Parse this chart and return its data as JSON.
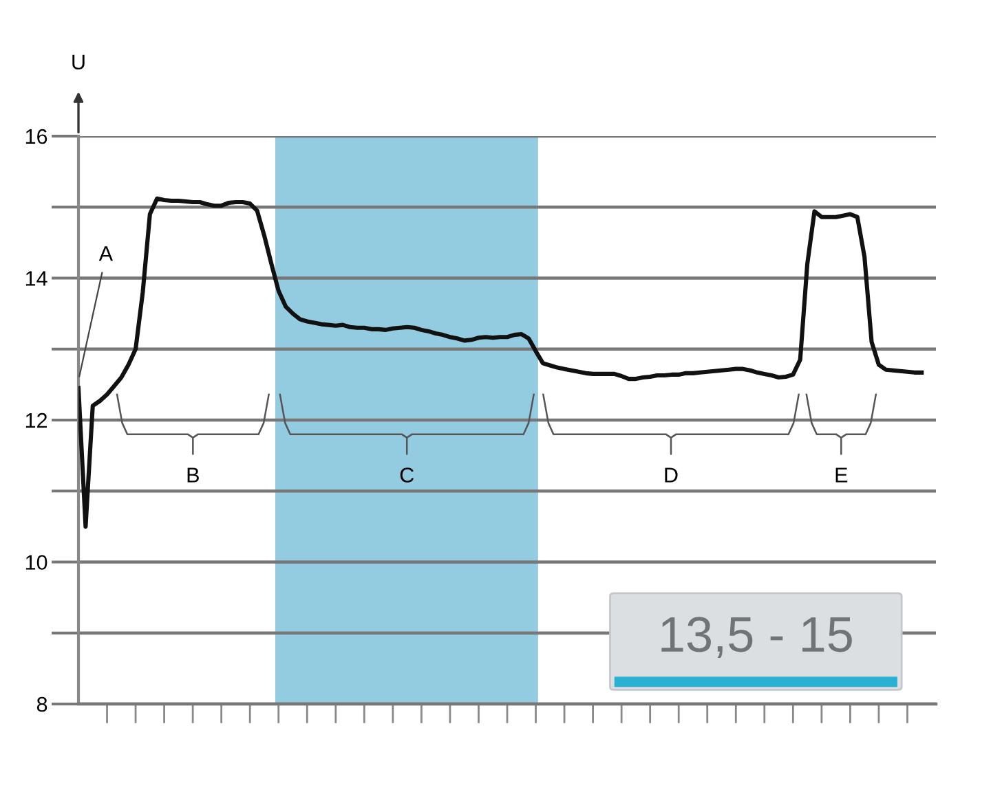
{
  "chart_data": {
    "type": "line",
    "ylabel": "U",
    "categories": [
      null,
      null,
      null,
      null,
      null,
      null,
      null,
      null,
      null,
      null,
      null,
      null,
      null,
      null,
      null,
      null,
      null,
      null,
      null,
      null,
      null,
      null,
      null,
      null,
      null,
      null,
      null,
      null,
      null,
      null,
      null,
      null,
      null,
      null,
      null,
      null,
      null,
      null,
      null,
      null,
      null,
      null,
      null,
      null,
      null,
      null,
      null,
      null,
      null,
      null,
      null,
      null,
      null,
      null,
      null,
      null,
      null,
      null,
      null,
      null,
      null,
      null,
      null,
      null,
      null,
      null,
      null,
      null,
      null,
      null,
      null,
      null,
      null,
      null,
      null,
      null,
      null,
      null,
      null,
      null,
      null,
      null,
      null,
      null,
      null,
      null,
      null,
      null,
      null,
      null,
      null,
      null,
      null,
      null,
      null,
      null,
      null,
      null,
      null,
      null,
      null,
      null,
      null,
      null,
      null,
      null,
      null,
      null,
      null,
      null,
      null,
      null,
      null,
      null,
      null,
      null,
      null,
      null,
      null
    ],
    "series": [
      {
        "color": "#111111",
        "values": [
          12.45,
          10.5,
          12.2,
          12.27,
          12.36,
          12.48,
          12.6,
          12.78,
          13.0,
          13.8,
          14.9,
          15.12,
          15.1,
          15.09,
          15.09,
          15.08,
          15.07,
          15.07,
          15.04,
          15.02,
          15.02,
          15.06,
          15.07,
          15.07,
          15.05,
          14.95,
          14.6,
          14.2,
          13.82,
          13.6,
          13.5,
          13.42,
          13.39,
          13.37,
          13.35,
          13.34,
          13.33,
          13.34,
          13.31,
          13.3,
          13.3,
          13.28,
          13.28,
          13.27,
          13.29,
          13.3,
          13.31,
          13.3,
          13.27,
          13.25,
          13.22,
          13.2,
          13.17,
          13.15,
          13.12,
          13.13,
          13.16,
          13.17,
          13.16,
          13.17,
          13.17,
          13.2,
          13.21,
          13.15,
          12.97,
          12.8,
          12.77,
          12.74,
          12.72,
          12.7,
          12.68,
          12.66,
          12.65,
          12.65,
          12.65,
          12.65,
          12.62,
          12.58,
          12.58,
          12.6,
          12.61,
          12.63,
          12.63,
          12.64,
          12.64,
          12.66,
          12.66,
          12.67,
          12.68,
          12.69,
          12.7,
          12.71,
          12.72,
          12.72,
          12.7,
          12.67,
          12.65,
          12.63,
          12.6,
          12.61,
          12.64,
          12.85,
          14.2,
          14.94,
          14.86,
          14.86,
          14.86,
          14.88,
          14.9,
          14.86,
          14.3,
          13.1,
          12.78,
          12.71,
          12.7,
          12.69,
          12.68,
          12.67,
          12.67
        ]
      }
    ],
    "ylim": [
      8,
      16
    ],
    "yticks": [
      8,
      {
        "value": 9,
        "label": null
      },
      10,
      {
        "value": 11,
        "label": null
      },
      12,
      {
        "value": 13,
        "label": null
      },
      14,
      {
        "value": 15,
        "label": null
      },
      16
    ],
    "grid": "y",
    "tick_labels": "y",
    "annotations": [
      "A",
      "B",
      "C",
      "D",
      "E",
      "13,5 - 15"
    ]
  }
}
